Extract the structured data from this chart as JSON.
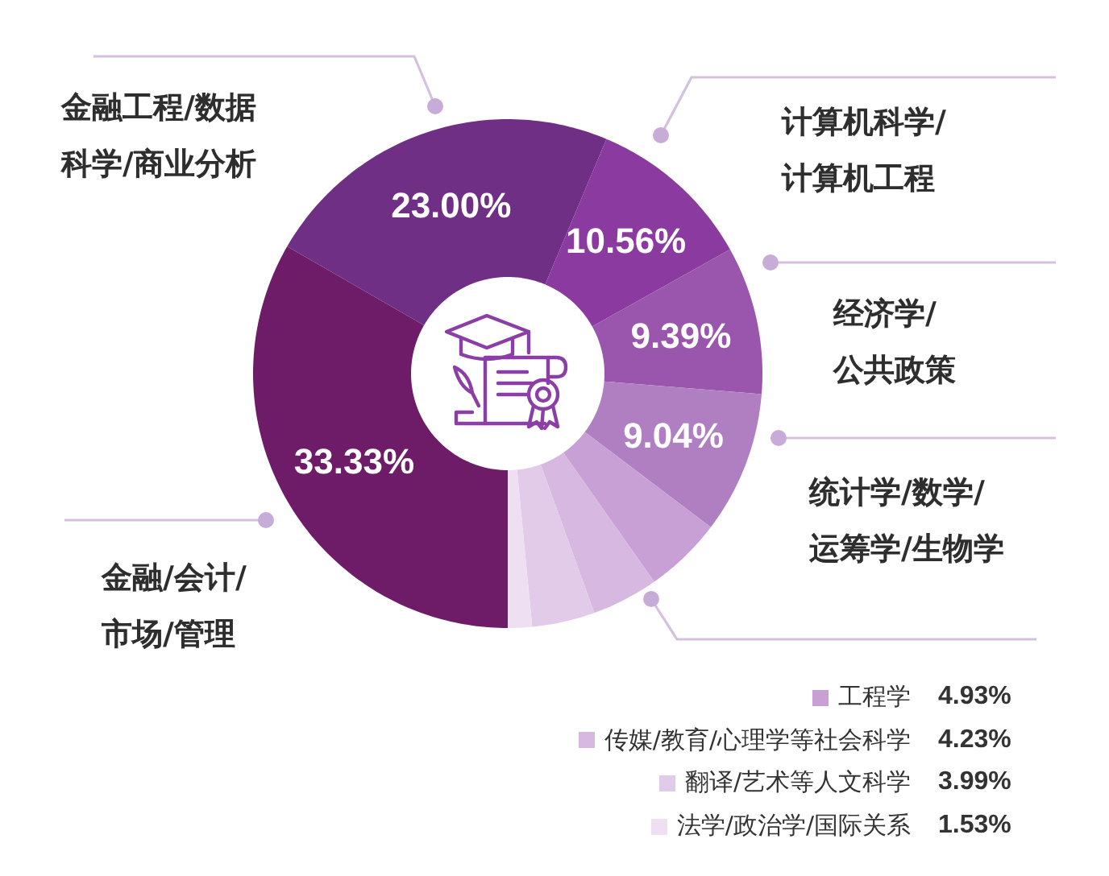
{
  "chart_data": {
    "type": "donut",
    "categories": [
      "金融/会计/市场/管理",
      "金融工程/数据科学/商业分析",
      "计算机科学/计算机工程",
      "经济学/公共政策",
      "统计学/数学/运筹学/生物学",
      "工程学",
      "传媒/教育/心理学等社会科学",
      "翻译/艺术等人文科学",
      "法学/政治学/国际关系"
    ],
    "values": [
      33.33,
      23.0,
      10.56,
      9.39,
      9.04,
      4.93,
      4.23,
      3.99,
      1.53
    ],
    "colors": [
      "#6e1c67",
      "#6f2f85",
      "#8b3aa0",
      "#9a55ac",
      "#b07fc2",
      "#c9a0d6",
      "#d7b8e1",
      "#e2cbe9",
      "#eee0f2"
    ],
    "value_labels": [
      "33.33%",
      "23.00%",
      "10.56%",
      "9.39%",
      "9.04%",
      "4.93%",
      "4.23%",
      "3.99%",
      "1.53%"
    ],
    "legend": "bottom right"
  }
}
